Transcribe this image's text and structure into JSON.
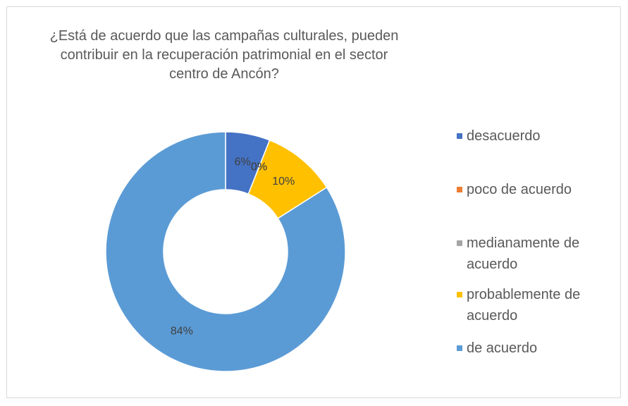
{
  "chart_data": {
    "type": "doughnut",
    "title": "¿Está de acuerdo que las campañas culturales, pueden contribuir en la recuperación patrimonial en el sector centro de Ancón?",
    "categories": [
      "desacuerdo",
      "poco de acuerdo",
      "medianamente de acuerdo",
      "probablemente de acuerdo",
      "de acuerdo"
    ],
    "values": [
      6,
      0,
      0,
      10,
      84
    ],
    "value_labels": [
      "6%",
      "0%",
      "0%",
      "10%",
      "84%"
    ],
    "colors": [
      "#4472c4",
      "#ed7d31",
      "#a5a5a5",
      "#ffc000",
      "#5b9bd5"
    ],
    "legend": "right"
  }
}
